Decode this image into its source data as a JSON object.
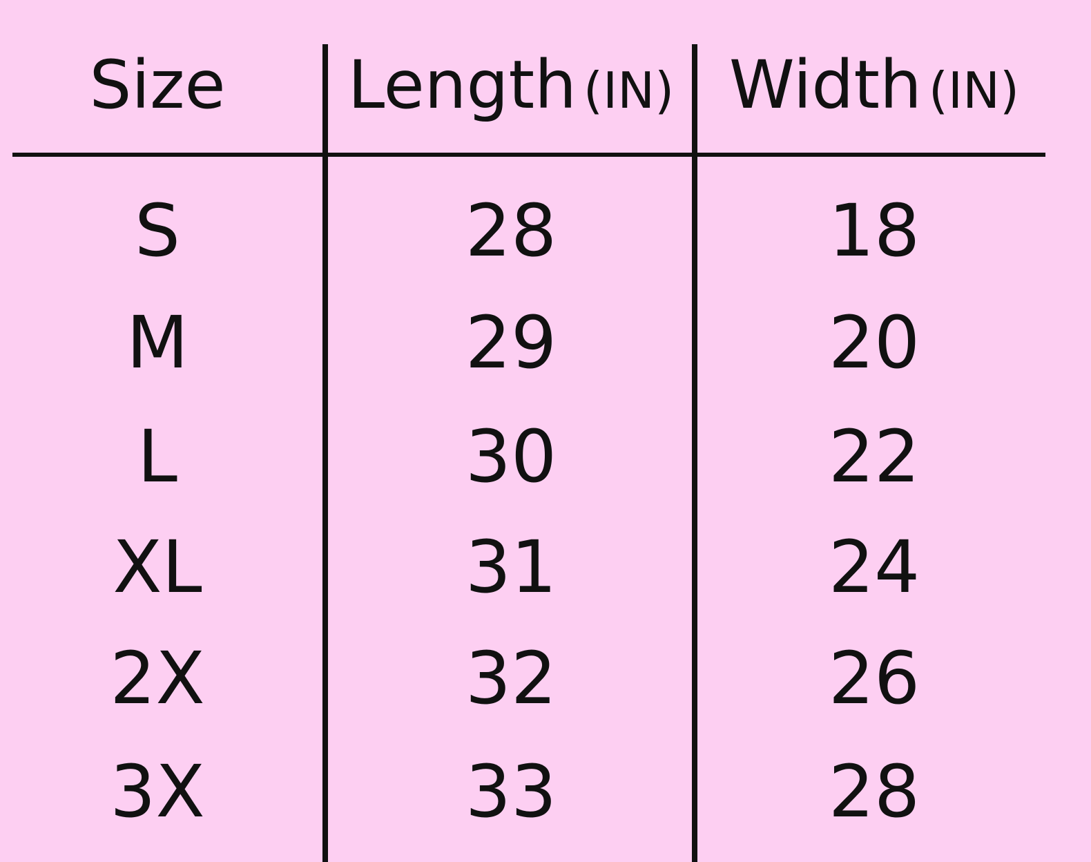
{
  "table": {
    "header": [
      {
        "label": "Size"
      },
      {
        "label": "Length",
        "unit": "(IN)"
      },
      {
        "label": "Width",
        "unit": "(IN)"
      }
    ],
    "rows": [
      [
        "S",
        28,
        18
      ],
      [
        "M",
        29,
        20
      ],
      [
        "L",
        30,
        22
      ],
      [
        "XL",
        31,
        24
      ],
      [
        "2X",
        32,
        26
      ],
      [
        "3X",
        33,
        28
      ]
    ]
  }
}
